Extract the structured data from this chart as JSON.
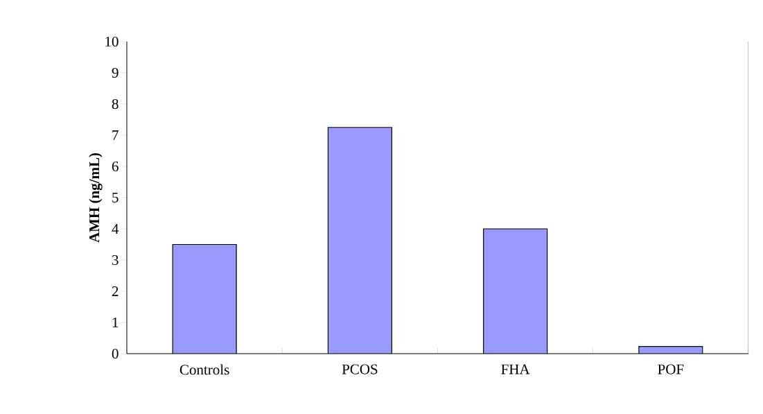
{
  "chart_data": {
    "type": "bar",
    "ylabel": "AMH (ng/mL)",
    "categories": [
      "Controls",
      "PCOS",
      "FHA",
      "POF"
    ],
    "values": [
      3.5,
      7.25,
      4.0,
      0.23
    ],
    "color": "#9999ff",
    "ylim": [
      0,
      10
    ],
    "yticks": [
      0,
      1,
      2,
      3,
      4,
      5,
      6,
      7,
      8,
      9,
      10
    ],
    "grid": false
  }
}
